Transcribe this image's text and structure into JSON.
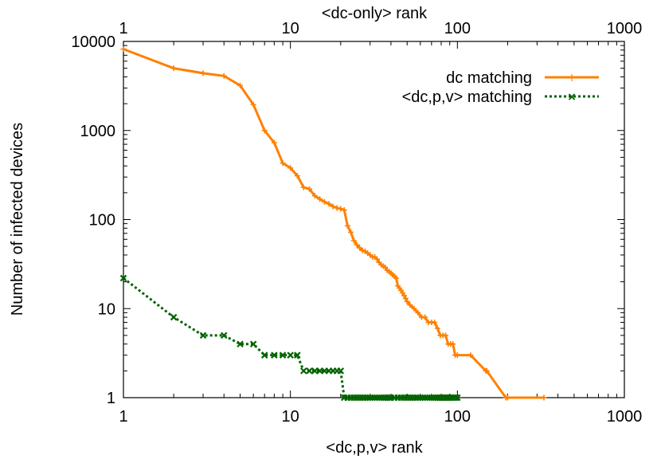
{
  "chart_data": {
    "type": "line",
    "title": "",
    "xlabel_bottom": "<dc,p,v> rank",
    "xlabel_top": "<dc-only> rank",
    "ylabel": "Number of infected devices",
    "x_scale": "log",
    "y_scale": "log",
    "xlim": [
      1,
      1000
    ],
    "ylim": [
      1,
      10000
    ],
    "x_ticks": [
      "1",
      "10",
      "100",
      "1000"
    ],
    "x_ticks_top": [
      "1",
      "10",
      "100",
      "1000"
    ],
    "y_ticks": [
      "1",
      "10",
      "100",
      "1000",
      "10000"
    ],
    "grid": false,
    "legend_position": "top-right",
    "series": [
      {
        "name": "dc matching",
        "color": "#ff8000",
        "style": "solid",
        "marker": "plus",
        "x": [
          1,
          2,
          3,
          4,
          5,
          6,
          7,
          8,
          9,
          10,
          11,
          12,
          13,
          14,
          15,
          16,
          17,
          18,
          19,
          20,
          21,
          22,
          23,
          24,
          25,
          26,
          27,
          28,
          29,
          30,
          31,
          32,
          33,
          34,
          35,
          36,
          37,
          38,
          39,
          40,
          41,
          42,
          43,
          44,
          45,
          46,
          47,
          48,
          49,
          50,
          52,
          55,
          58,
          61,
          64,
          67,
          70,
          73,
          76,
          79,
          82,
          85,
          88,
          91,
          94,
          97,
          100,
          120,
          148,
          150,
          195,
          200,
          330
        ],
        "y": [
          8200,
          5000,
          4400,
          4100,
          3200,
          1950,
          1000,
          730,
          430,
          380,
          310,
          230,
          220,
          185,
          170,
          158,
          150,
          140,
          135,
          132,
          128,
          85,
          72,
          58,
          52,
          48,
          45,
          44,
          42,
          40,
          38,
          38,
          36,
          33,
          31,
          30,
          29,
          27,
          26,
          25,
          24,
          23,
          22,
          18,
          17,
          16,
          15,
          14,
          13,
          12,
          11,
          10,
          9,
          8,
          8,
          7,
          7,
          7,
          6,
          5,
          5,
          5,
          4,
          4,
          4,
          3,
          3,
          3,
          2,
          2,
          1,
          1,
          1
        ]
      },
      {
        "name": "<dc,p,v> matching",
        "color": "#006400",
        "style": "dotted",
        "marker": "x",
        "x": [
          1,
          2,
          3,
          4,
          5,
          6,
          7,
          8,
          9,
          10,
          11,
          12,
          13,
          14,
          15,
          16,
          17,
          18,
          19,
          20,
          21,
          22,
          23,
          24,
          25,
          26,
          27,
          28,
          29,
          30,
          31,
          32,
          33,
          34,
          35,
          36,
          37,
          38,
          39,
          40,
          42,
          44,
          46,
          48,
          50,
          52,
          54,
          56,
          58,
          60,
          62,
          64,
          66,
          68,
          70,
          72,
          74,
          76,
          78,
          80,
          82,
          84,
          86,
          88,
          90,
          92,
          94,
          96,
          98,
          100
        ],
        "y": [
          22,
          8,
          5,
          5,
          4,
          4,
          3,
          3,
          3,
          3,
          3,
          2,
          2,
          2,
          2,
          2,
          2,
          2,
          2,
          2,
          1,
          1,
          1,
          1,
          1,
          1,
          1,
          1,
          1,
          1,
          1,
          1,
          1,
          1,
          1,
          1,
          1,
          1,
          1,
          1,
          1,
          1,
          1,
          1,
          1,
          1,
          1,
          1,
          1,
          1,
          1,
          1,
          1,
          1,
          1,
          1,
          1,
          1,
          1,
          1,
          1,
          1,
          1,
          1,
          1,
          1,
          1,
          1,
          1,
          1
        ]
      }
    ]
  }
}
